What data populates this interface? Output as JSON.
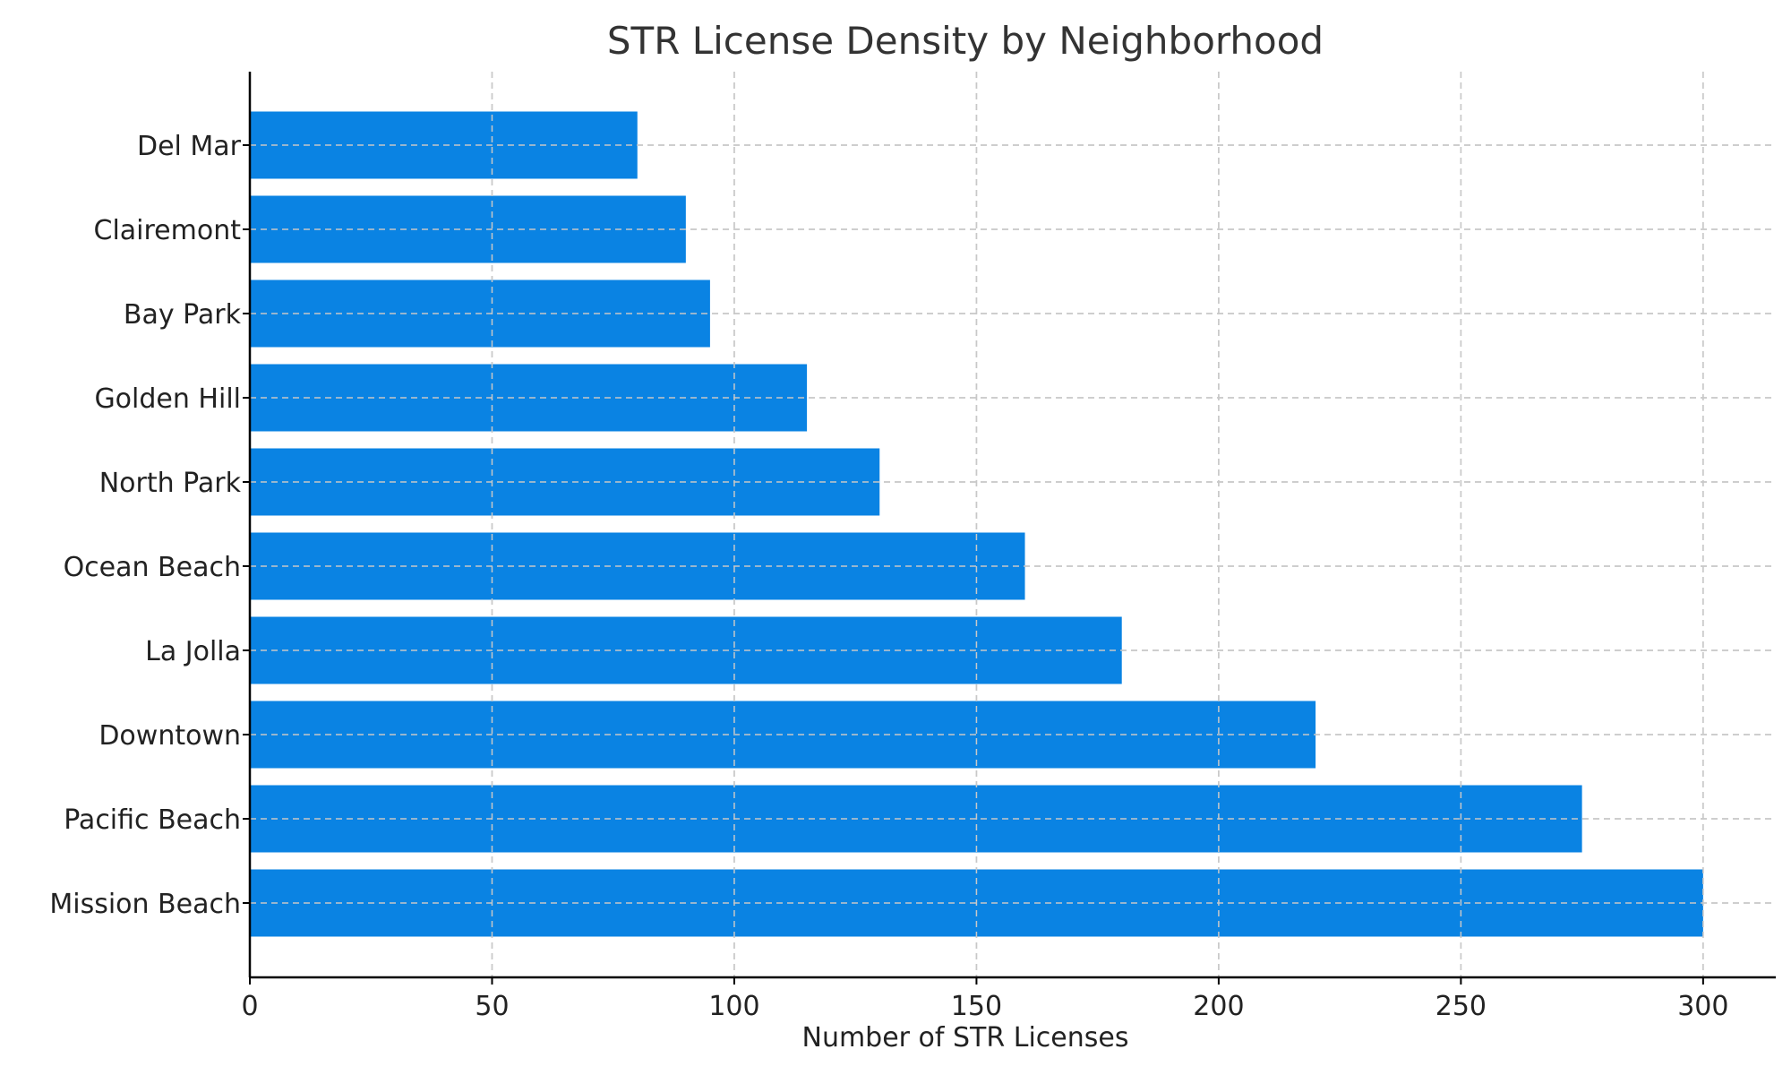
{
  "chart_data": {
    "type": "bar",
    "orientation": "horizontal",
    "title": "STR License Density by Neighborhood",
    "xlabel": "Number of STR Licenses",
    "ylabel": "",
    "categories": [
      "Mission Beach",
      "Pacific Beach",
      "Downtown",
      "La Jolla",
      "Ocean Beach",
      "North Park",
      "Golden Hill",
      "Bay Park",
      "Clairemont",
      "Del Mar"
    ],
    "values": [
      300,
      275,
      220,
      180,
      160,
      130,
      115,
      95,
      90,
      80
    ],
    "xlim": [
      0,
      315
    ],
    "xticks": [
      0,
      50,
      100,
      150,
      200,
      250,
      300
    ],
    "xtick_labels": [
      "0",
      "50",
      "100",
      "150",
      "200",
      "250",
      "300"
    ],
    "grid": true,
    "legend": "none",
    "bar_color": "#0a83e3"
  }
}
